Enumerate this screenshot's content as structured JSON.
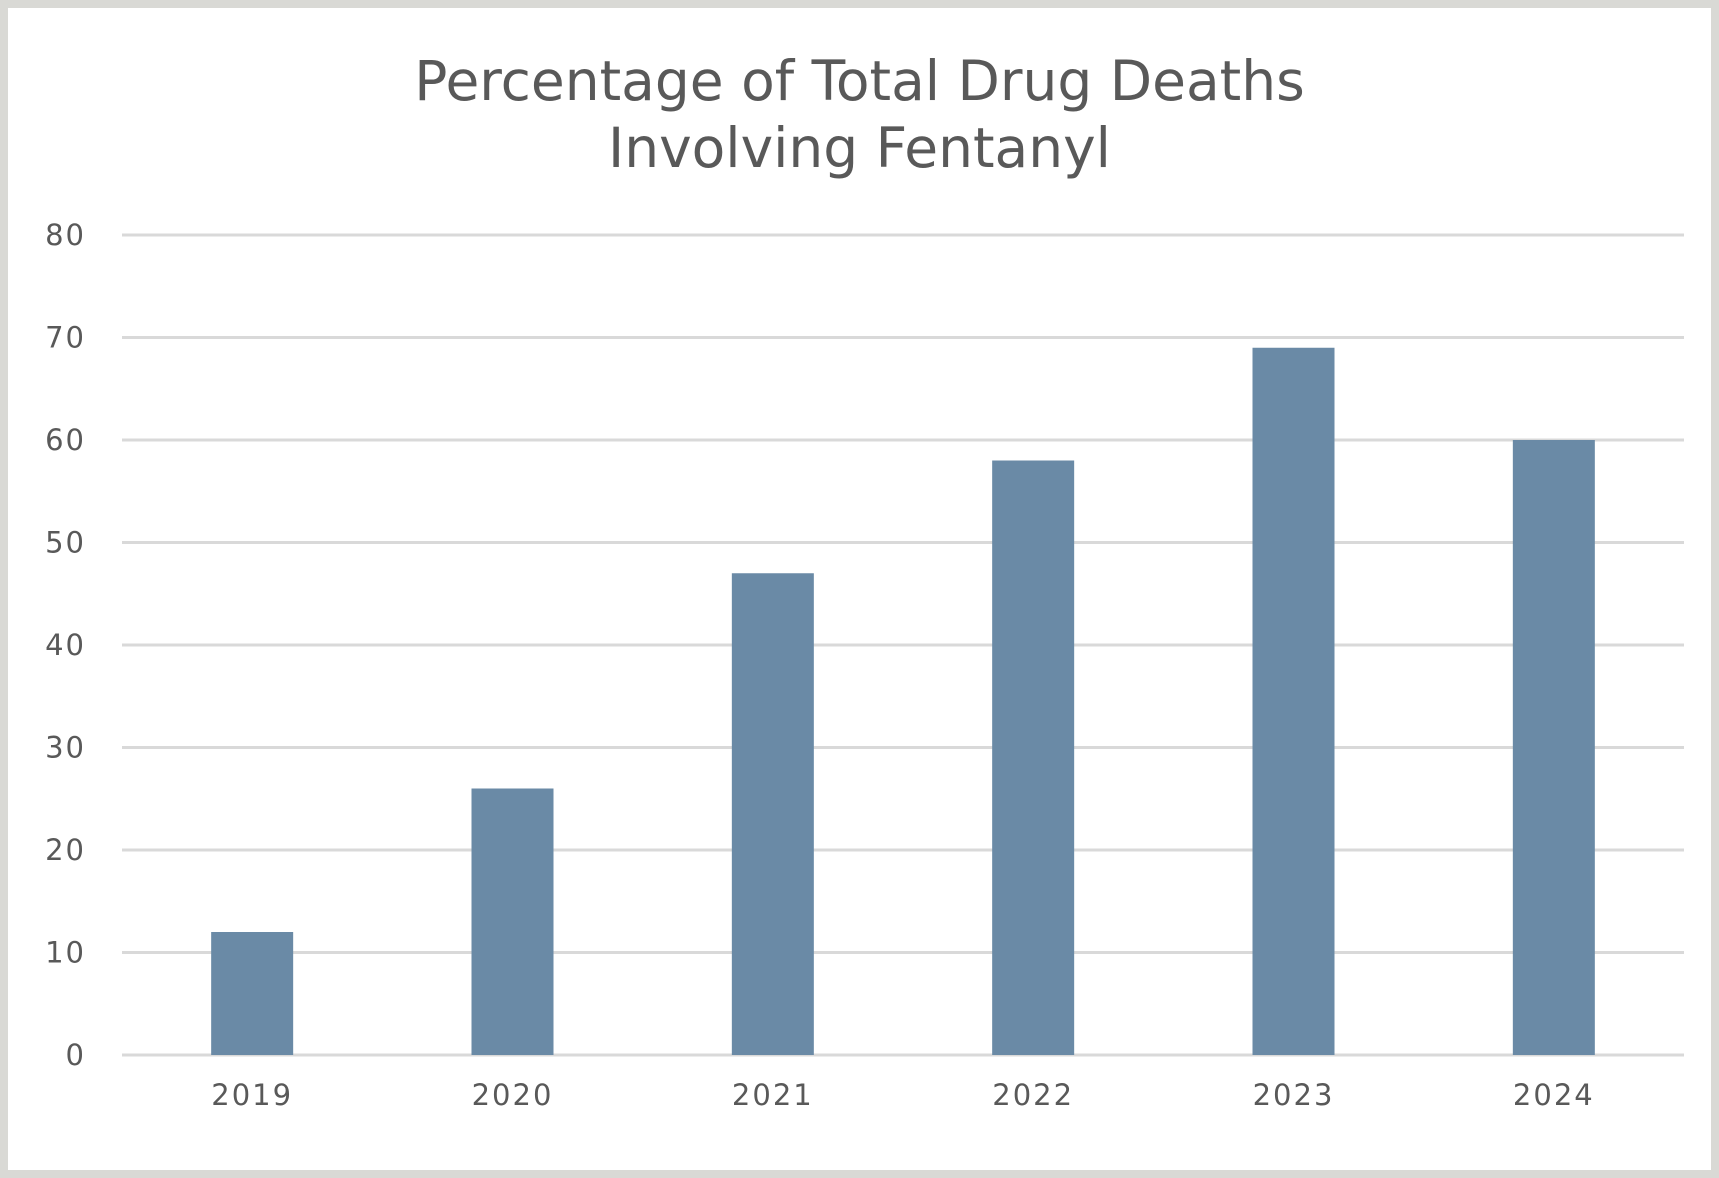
{
  "chart_data": {
    "type": "bar",
    "title": "Percentage of Total Drug Deaths Involving Fentanyl",
    "categories": [
      "2019",
      "2020",
      "2021",
      "2022",
      "2023",
      "2024"
    ],
    "values": [
      12,
      26,
      47,
      58,
      69,
      60
    ],
    "ylim": [
      0,
      80
    ],
    "yticks": [
      0,
      10,
      20,
      30,
      40,
      50,
      60,
      70,
      80
    ],
    "grid": true,
    "legend": "none",
    "colors": {
      "bar": "#6a8aa6",
      "grid": "#d9d9d9",
      "text": "#595959",
      "border": "#d9d9d5"
    }
  }
}
